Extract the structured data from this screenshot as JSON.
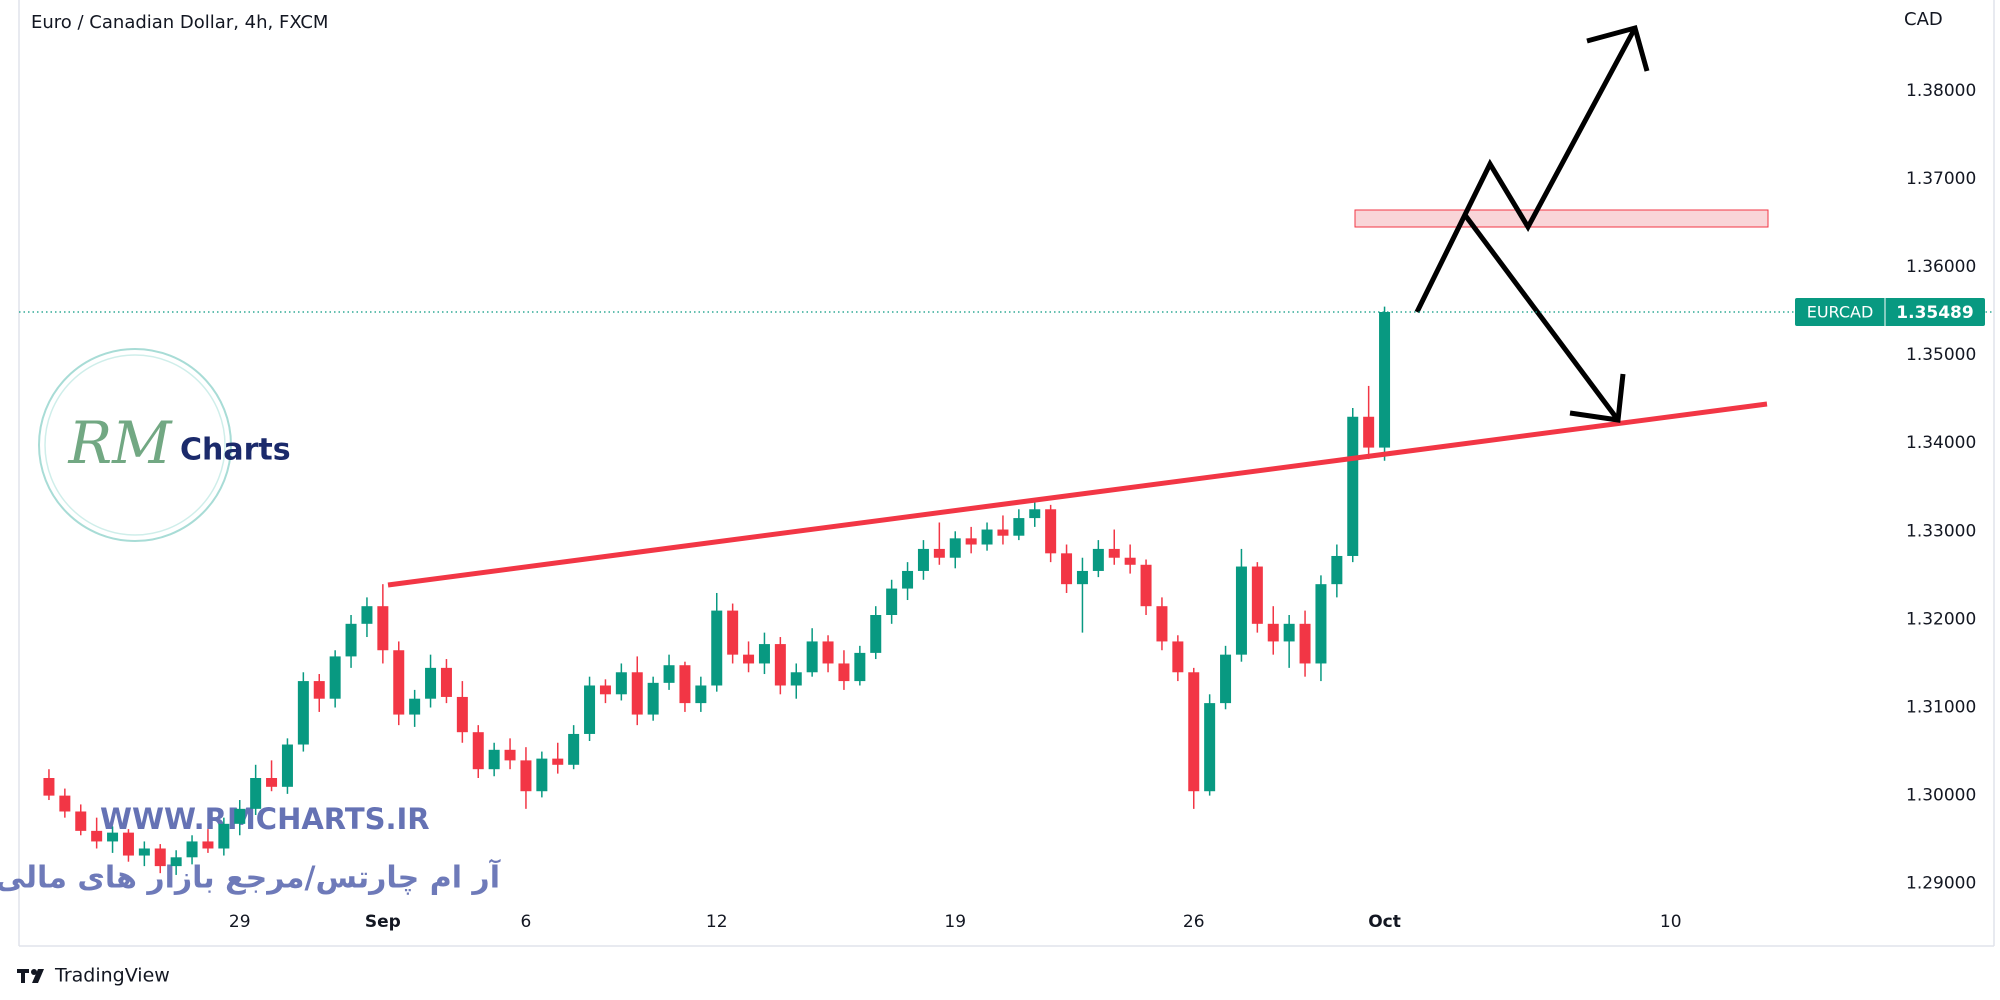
{
  "chart_data": {
    "type": "candlestick",
    "title": "Euro / Canadian Dollar, 4h, FXCM",
    "currency": "CAD",
    "symbol": "EURCAD",
    "categories": [
      null,
      null,
      null,
      null,
      null,
      null,
      null,
      null,
      null,
      null,
      null,
      null,
      "29",
      null,
      null,
      null,
      null,
      null,
      null,
      null,
      null,
      "Sep",
      null,
      null,
      null,
      null,
      null,
      null,
      null,
      null,
      "6",
      null,
      null,
      null,
      null,
      null,
      null,
      null,
      null,
      null,
      null,
      null,
      "12",
      null,
      null,
      null,
      null,
      null,
      null,
      null,
      null,
      null,
      null,
      null,
      null,
      null,
      null,
      "19",
      null,
      null,
      null,
      null,
      null,
      null,
      null,
      null,
      null,
      null,
      null,
      null,
      null,
      null,
      "26",
      null,
      null,
      null,
      null,
      null,
      null,
      null,
      null,
      null,
      null,
      null,
      "Oct",
      null,
      null,
      null,
      null,
      null,
      null,
      null,
      null,
      null,
      null,
      null,
      null,
      null,
      null,
      null,
      null,
      null,
      "10"
    ],
    "open": [
      1.302,
      1.3,
      1.2982,
      1.296,
      1.2948,
      1.2958,
      1.2932,
      1.294,
      1.292,
      1.293,
      1.2948,
      1.294,
      1.2968,
      1.2985,
      1.302,
      1.301,
      1.3058,
      1.313,
      1.311,
      1.3158,
      1.3195,
      1.3215,
      1.3165,
      1.3092,
      1.311,
      1.3145,
      1.3112,
      1.3072,
      1.303,
      1.3052,
      1.304,
      1.3005,
      1.3042,
      1.3035,
      1.307,
      1.3125,
      1.3115,
      1.314,
      1.3092,
      1.3128,
      1.3148,
      1.3105,
      1.3125,
      1.321,
      1.316,
      1.315,
      1.3172,
      1.3125,
      1.314,
      1.3175,
      1.315,
      1.313,
      1.3162,
      1.3205,
      1.3235,
      1.3255,
      1.328,
      1.327,
      1.3292,
      1.3285,
      1.3302,
      1.3295,
      1.3315,
      1.3325,
      1.3275,
      1.324,
      1.3255,
      1.328,
      1.327,
      1.3262,
      1.3215,
      1.3175,
      1.314,
      1.3005,
      1.3105,
      1.316,
      1.326,
      1.3195,
      1.3175,
      1.3195,
      1.315,
      1.324,
      1.3272,
      1.343,
      1.3395,
      null,
      null,
      null,
      null,
      null,
      null,
      null,
      null,
      null,
      null,
      null,
      null,
      null,
      null,
      null,
      null,
      null,
      null
    ],
    "high": [
      1.303,
      1.3008,
      1.299,
      1.2975,
      1.2965,
      1.2962,
      1.2948,
      1.2945,
      1.2938,
      1.2955,
      1.2962,
      1.2975,
      1.2995,
      1.3035,
      1.304,
      1.3065,
      1.314,
      1.3138,
      1.3165,
      1.3205,
      1.3225,
      1.324,
      1.3175,
      1.312,
      1.316,
      1.3155,
      1.313,
      1.308,
      1.306,
      1.3065,
      1.3055,
      1.305,
      1.306,
      1.308,
      1.3135,
      1.3132,
      1.315,
      1.3158,
      1.3135,
      1.316,
      1.3152,
      1.3135,
      1.323,
      1.3218,
      1.3175,
      1.3185,
      1.318,
      1.315,
      1.319,
      1.3182,
      1.3165,
      1.317,
      1.3215,
      1.3245,
      1.3265,
      1.329,
      1.331,
      1.33,
      1.3305,
      1.331,
      1.3318,
      1.3325,
      1.3335,
      1.333,
      1.3285,
      1.327,
      1.329,
      1.3302,
      1.3285,
      1.3268,
      1.3225,
      1.3182,
      1.3145,
      1.3115,
      1.317,
      1.328,
      1.3265,
      1.3215,
      1.3205,
      1.321,
      1.325,
      1.3285,
      1.344,
      1.3465,
      1.3555,
      null,
      null,
      null,
      null,
      null,
      null,
      null,
      null,
      null,
      null,
      null,
      null,
      null,
      null,
      null,
      null,
      null,
      null
    ],
    "low": [
      1.2995,
      1.2975,
      1.2955,
      1.294,
      1.2935,
      1.2925,
      1.292,
      1.2912,
      1.291,
      1.2922,
      1.2935,
      1.2932,
      1.2955,
      1.2978,
      1.3005,
      1.3002,
      1.305,
      1.3095,
      1.31,
      1.3145,
      1.318,
      1.315,
      1.308,
      1.3078,
      1.31,
      1.3105,
      1.306,
      1.302,
      1.3022,
      1.303,
      1.2985,
      1.2998,
      1.3025,
      1.303,
      1.3062,
      1.3105,
      1.3108,
      1.308,
      1.3085,
      1.312,
      1.3095,
      1.3095,
      1.3118,
      1.315,
      1.314,
      1.3138,
      1.3115,
      1.311,
      1.3135,
      1.314,
      1.312,
      1.3125,
      1.3155,
      1.3195,
      1.3222,
      1.3245,
      1.3262,
      1.3258,
      1.3275,
      1.3278,
      1.3285,
      1.329,
      1.3305,
      1.3265,
      1.323,
      1.3185,
      1.3248,
      1.3262,
      1.3252,
      1.3205,
      1.3165,
      1.313,
      1.2985,
      1.3,
      1.3098,
      1.3152,
      1.3185,
      1.316,
      1.3145,
      1.3135,
      1.313,
      1.3225,
      1.3265,
      1.3382,
      1.338,
      null,
      null,
      null,
      null,
      null,
      null,
      null,
      null,
      null,
      null,
      null,
      null,
      null,
      null,
      null,
      null,
      null,
      null
    ],
    "close": [
      1.3,
      1.2982,
      1.296,
      1.2948,
      1.2958,
      1.2932,
      1.294,
      1.292,
      1.293,
      1.2948,
      1.294,
      1.2968,
      1.2985,
      1.302,
      1.301,
      1.3058,
      1.313,
      1.311,
      1.3158,
      1.3195,
      1.3215,
      1.3165,
      1.3092,
      1.311,
      1.3145,
      1.3112,
      1.3072,
      1.303,
      1.3052,
      1.304,
      1.3005,
      1.3042,
      1.3035,
      1.307,
      1.3125,
      1.3115,
      1.314,
      1.3092,
      1.3128,
      1.3148,
      1.3105,
      1.3125,
      1.321,
      1.316,
      1.315,
      1.3172,
      1.3125,
      1.314,
      1.3175,
      1.315,
      1.313,
      1.3162,
      1.3205,
      1.3235,
      1.3255,
      1.328,
      1.327,
      1.3292,
      1.3285,
      1.3302,
      1.3295,
      1.3315,
      1.3325,
      1.3275,
      1.324,
      1.3255,
      1.328,
      1.327,
      1.3262,
      1.3215,
      1.3175,
      1.314,
      1.3005,
      1.3105,
      1.316,
      1.326,
      1.3195,
      1.3175,
      1.3195,
      1.315,
      1.324,
      1.3272,
      1.343,
      1.3395,
      1.35489,
      null,
      null,
      null,
      null,
      null,
      null,
      null,
      null,
      null,
      null,
      null,
      null,
      null,
      null,
      null,
      null,
      null,
      null
    ],
    "up_color": "#089981",
    "down_color": "#f23645",
    "ylim": [
      1.2877,
      1.3903
    ],
    "yticks": [
      {
        "value": 1.29,
        "label": "1.29000"
      },
      {
        "value": 1.3,
        "label": "1.30000"
      },
      {
        "value": 1.31,
        "label": "1.31000"
      },
      {
        "value": 1.32,
        "label": "1.32000"
      },
      {
        "value": 1.33,
        "label": "1.33000"
      },
      {
        "value": 1.34,
        "label": "1.34000"
      },
      {
        "value": 1.35,
        "label": "1.35000"
      },
      {
        "value": 1.36,
        "label": "1.36000"
      },
      {
        "value": 1.37,
        "label": "1.37000"
      },
      {
        "value": 1.38,
        "label": "1.38000"
      }
    ]
  },
  "watermark": {
    "logo_mark": "RM",
    "logo_text": "Charts",
    "website": "WWW.RMCHARTS.IR",
    "tagline": "آر ام چارتس/مرجع بازار های مالی"
  },
  "footer": {
    "brand": "TradingView"
  }
}
